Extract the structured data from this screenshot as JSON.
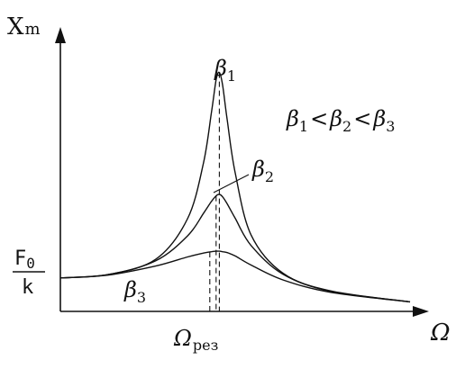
{
  "chart_data": {
    "type": "line",
    "title": "",
    "xlabel": "Ω",
    "ylabel": "X",
    "ylabel_sub": "m",
    "xlim": [
      0,
      2.2
    ],
    "ylim": [
      0,
      5.2
    ],
    "x_tick_labels": [
      {
        "x": 1.0,
        "main": "Ω",
        "sub": "рез"
      }
    ],
    "y_tick_labels": [
      {
        "y": 0.7,
        "numerator": "F",
        "numerator_sub": "0",
        "denominator": "k"
      }
    ],
    "series": [
      {
        "name": "β1",
        "label_main": "β",
        "label_sub": "1",
        "line_color": "#111111",
        "x": [
          0.0,
          0.3,
          0.6,
          0.8,
          0.9,
          0.95,
          0.98,
          1.0,
          1.02,
          1.05,
          1.1,
          1.2,
          1.4,
          1.7,
          2.2
        ],
        "y": [
          0.7,
          0.77,
          1.09,
          1.94,
          3.1,
          4.15,
          4.85,
          5.0,
          4.75,
          4.0,
          2.9,
          1.6,
          0.8,
          0.43,
          0.2
        ]
      },
      {
        "name": "β2",
        "label_main": "β",
        "label_sub": "2",
        "line_color": "#111111",
        "x": [
          0.0,
          0.3,
          0.6,
          0.8,
          0.9,
          0.95,
          0.98,
          1.0,
          1.02,
          1.05,
          1.1,
          1.2,
          1.4,
          1.7,
          2.2
        ],
        "y": [
          0.7,
          0.77,
          1.06,
          1.58,
          2.05,
          2.3,
          2.42,
          2.45,
          2.4,
          2.25,
          1.95,
          1.38,
          0.78,
          0.42,
          0.2
        ]
      },
      {
        "name": "β3",
        "label_main": "β",
        "label_sub": "3",
        "line_color": "#111111",
        "x": [
          0.0,
          0.3,
          0.6,
          0.8,
          0.9,
          0.95,
          0.98,
          1.0,
          1.02,
          1.05,
          1.1,
          1.2,
          1.4,
          1.7,
          2.2
        ],
        "y": [
          0.7,
          0.76,
          0.95,
          1.14,
          1.22,
          1.25,
          1.26,
          1.26,
          1.25,
          1.23,
          1.16,
          0.97,
          0.66,
          0.4,
          0.2
        ]
      }
    ],
    "resonance_markers": [
      {
        "series": "β1",
        "x": 1.0
      },
      {
        "series": "β2",
        "x": 0.98
      },
      {
        "series": "β3",
        "x": 0.94
      }
    ],
    "annotation": {
      "parts": [
        {
          "main": "β",
          "sub": "1"
        },
        {
          "op": "<"
        },
        {
          "main": "β",
          "sub": "2"
        },
        {
          "op": "<"
        },
        {
          "main": "β",
          "sub": "3"
        }
      ]
    },
    "grid": false,
    "legend": "none"
  }
}
